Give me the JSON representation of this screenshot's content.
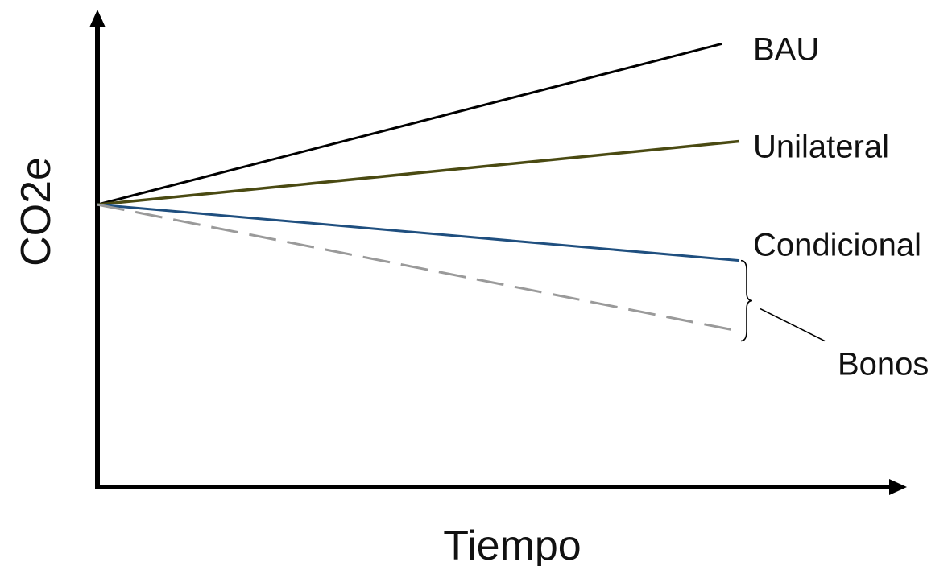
{
  "chart_data": {
    "type": "line",
    "title": "",
    "xlabel": "Tiempo",
    "ylabel": "CO2e",
    "xlim": [
      0,
      1
    ],
    "ylim": [
      0,
      1
    ],
    "grid": false,
    "legend": "none",
    "series": [
      {
        "name": "BAU",
        "x": [
          0,
          1
        ],
        "y": [
          0.58,
          0.91
        ],
        "color": "#000000",
        "dash": "solid"
      },
      {
        "name": "Unilateral",
        "x": [
          0,
          1
        ],
        "y": [
          0.58,
          0.71
        ],
        "color": "#4a4a12",
        "dash": "solid"
      },
      {
        "name": "Condicional",
        "x": [
          0,
          1
        ],
        "y": [
          0.58,
          0.465
        ],
        "color": "#1f4f7f",
        "dash": "solid"
      },
      {
        "name": "",
        "x": [
          0,
          1
        ],
        "y": [
          0.58,
          0.32
        ],
        "color": "#9a9a9a",
        "dash": "dashed"
      }
    ],
    "annotations": [
      {
        "text": "Bonos",
        "note": "brace spans Condicional to dashed line"
      }
    ]
  }
}
